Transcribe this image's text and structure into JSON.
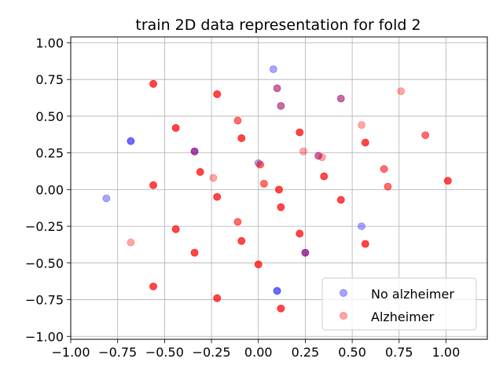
{
  "chart_data": {
    "type": "scatter",
    "title": "train 2D data representation for fold 2",
    "xlabel": "",
    "ylabel": "",
    "xlim": [
      -1.0,
      1.22
    ],
    "ylim": [
      -1.02,
      1.04
    ],
    "grid": true,
    "legend_position": "lower-right",
    "x_ticks": [
      {
        "value": -1.0,
        "label": "−1.00"
      },
      {
        "value": -0.75,
        "label": "−0.75"
      },
      {
        "value": -0.5,
        "label": "−0.50"
      },
      {
        "value": -0.25,
        "label": "−0.25"
      },
      {
        "value": 0.0,
        "label": "0.00"
      },
      {
        "value": 0.25,
        "label": "0.25"
      },
      {
        "value": 0.5,
        "label": "0.50"
      },
      {
        "value": 0.75,
        "label": "0.75"
      },
      {
        "value": 1.0,
        "label": "1.00"
      }
    ],
    "y_ticks": [
      {
        "value": 1.0,
        "label": "1.00"
      },
      {
        "value": 0.75,
        "label": "0.75"
      },
      {
        "value": 0.5,
        "label": "0.50"
      },
      {
        "value": 0.25,
        "label": "0.25"
      },
      {
        "value": 0.0,
        "label": "0.00"
      },
      {
        "value": -0.25,
        "label": "−0.25"
      },
      {
        "value": -0.5,
        "label": "−0.50"
      },
      {
        "value": -0.75,
        "label": "−0.75"
      },
      {
        "value": -1.0,
        "label": "−1.00"
      }
    ],
    "series": [
      {
        "name": "No alzheimer",
        "color": "#0000ff",
        "opacity": 0.35,
        "points": [
          {
            "x": 0.08,
            "y": 0.82
          },
          {
            "x": 0.1,
            "y": 0.69
          },
          {
            "x": 0.12,
            "y": 0.57
          },
          {
            "x": 0.44,
            "y": 0.62
          },
          {
            "x": -0.68,
            "y": 0.33
          },
          {
            "x": -0.68,
            "y": 0.33
          },
          {
            "x": -0.34,
            "y": 0.26
          },
          {
            "x": -0.34,
            "y": 0.26
          },
          {
            "x": 0.32,
            "y": 0.23
          },
          {
            "x": 0.0,
            "y": 0.18
          },
          {
            "x": -0.81,
            "y": -0.06
          },
          {
            "x": 0.55,
            "y": -0.25
          },
          {
            "x": 0.25,
            "y": -0.43
          },
          {
            "x": 0.25,
            "y": -0.43
          },
          {
            "x": 0.1,
            "y": -0.69
          },
          {
            "x": 0.1,
            "y": -0.69
          }
        ]
      },
      {
        "name": "Alzheimer",
        "color": "#ff0000",
        "opacity": 0.35,
        "points": [
          {
            "x": -0.56,
            "y": 0.72
          },
          {
            "x": -0.56,
            "y": 0.72
          },
          {
            "x": -0.56,
            "y": 0.72
          },
          {
            "x": -0.22,
            "y": 0.65
          },
          {
            "x": -0.22,
            "y": 0.65
          },
          {
            "x": -0.22,
            "y": 0.65
          },
          {
            "x": 0.76,
            "y": 0.67
          },
          {
            "x": 0.1,
            "y": 0.69
          },
          {
            "x": 0.12,
            "y": 0.57
          },
          {
            "x": 0.44,
            "y": 0.62
          },
          {
            "x": -0.11,
            "y": 0.47
          },
          {
            "x": -0.11,
            "y": 0.47
          },
          {
            "x": 0.55,
            "y": 0.44
          },
          {
            "x": -0.44,
            "y": 0.42
          },
          {
            "x": -0.44,
            "y": 0.42
          },
          {
            "x": -0.44,
            "y": 0.42
          },
          {
            "x": 0.22,
            "y": 0.39
          },
          {
            "x": 0.22,
            "y": 0.39
          },
          {
            "x": 0.22,
            "y": 0.39
          },
          {
            "x": 0.89,
            "y": 0.37
          },
          {
            "x": 0.89,
            "y": 0.37
          },
          {
            "x": -0.09,
            "y": 0.35
          },
          {
            "x": -0.09,
            "y": 0.35
          },
          {
            "x": -0.09,
            "y": 0.35
          },
          {
            "x": 0.57,
            "y": 0.32
          },
          {
            "x": 0.57,
            "y": 0.32
          },
          {
            "x": 0.57,
            "y": 0.32
          },
          {
            "x": -0.34,
            "y": 0.26
          },
          {
            "x": 0.24,
            "y": 0.26
          },
          {
            "x": 0.34,
            "y": 0.22
          },
          {
            "x": 0.32,
            "y": 0.23
          },
          {
            "x": 0.01,
            "y": 0.17
          },
          {
            "x": 0.01,
            "y": 0.17
          },
          {
            "x": 0.67,
            "y": 0.14
          },
          {
            "x": 0.67,
            "y": 0.14
          },
          {
            "x": -0.31,
            "y": 0.12
          },
          {
            "x": -0.31,
            "y": 0.12
          },
          {
            "x": -0.31,
            "y": 0.12
          },
          {
            "x": 0.35,
            "y": 0.09
          },
          {
            "x": 0.35,
            "y": 0.09
          },
          {
            "x": 0.35,
            "y": 0.09
          },
          {
            "x": -0.24,
            "y": 0.08
          },
          {
            "x": 1.01,
            "y": 0.06
          },
          {
            "x": 1.01,
            "y": 0.06
          },
          {
            "x": 1.01,
            "y": 0.06
          },
          {
            "x": 0.03,
            "y": 0.04
          },
          {
            "x": 0.03,
            "y": 0.04
          },
          {
            "x": -0.56,
            "y": 0.03
          },
          {
            "x": -0.56,
            "y": 0.03
          },
          {
            "x": -0.56,
            "y": 0.03
          },
          {
            "x": 0.69,
            "y": 0.02
          },
          {
            "x": 0.69,
            "y": 0.02
          },
          {
            "x": 0.11,
            "y": 0.0
          },
          {
            "x": 0.11,
            "y": 0.0
          },
          {
            "x": 0.11,
            "y": 0.0
          },
          {
            "x": -0.22,
            "y": -0.05
          },
          {
            "x": -0.22,
            "y": -0.05
          },
          {
            "x": -0.22,
            "y": -0.05
          },
          {
            "x": 0.44,
            "y": -0.07
          },
          {
            "x": 0.44,
            "y": -0.07
          },
          {
            "x": 0.44,
            "y": -0.07
          },
          {
            "x": 0.12,
            "y": -0.12
          },
          {
            "x": 0.12,
            "y": -0.12
          },
          {
            "x": 0.12,
            "y": -0.12
          },
          {
            "x": -0.11,
            "y": -0.22
          },
          {
            "x": -0.11,
            "y": -0.22
          },
          {
            "x": -0.44,
            "y": -0.27
          },
          {
            "x": -0.44,
            "y": -0.27
          },
          {
            "x": -0.44,
            "y": -0.27
          },
          {
            "x": 0.22,
            "y": -0.3
          },
          {
            "x": 0.22,
            "y": -0.3
          },
          {
            "x": 0.22,
            "y": -0.3
          },
          {
            "x": -0.09,
            "y": -0.35
          },
          {
            "x": -0.09,
            "y": -0.35
          },
          {
            "x": -0.09,
            "y": -0.35
          },
          {
            "x": -0.68,
            "y": -0.36
          },
          {
            "x": 0.57,
            "y": -0.37
          },
          {
            "x": 0.57,
            "y": -0.37
          },
          {
            "x": 0.57,
            "y": -0.37
          },
          {
            "x": -0.34,
            "y": -0.43
          },
          {
            "x": -0.34,
            "y": -0.43
          },
          {
            "x": -0.34,
            "y": -0.43
          },
          {
            "x": 0.25,
            "y": -0.43
          },
          {
            "x": 0.0,
            "y": -0.51
          },
          {
            "x": 0.0,
            "y": -0.51
          },
          {
            "x": 0.0,
            "y": -0.51
          },
          {
            "x": -0.56,
            "y": -0.66
          },
          {
            "x": -0.56,
            "y": -0.66
          },
          {
            "x": -0.56,
            "y": -0.66
          },
          {
            "x": -0.22,
            "y": -0.74
          },
          {
            "x": -0.22,
            "y": -0.74
          },
          {
            "x": -0.22,
            "y": -0.74
          },
          {
            "x": 0.12,
            "y": -0.81
          },
          {
            "x": 0.12,
            "y": -0.81
          },
          {
            "x": 0.12,
            "y": -0.81
          }
        ]
      }
    ]
  },
  "colors": {
    "grid": "#b0b0b0",
    "axes": "#000000",
    "legend_border": "#cccccc"
  }
}
